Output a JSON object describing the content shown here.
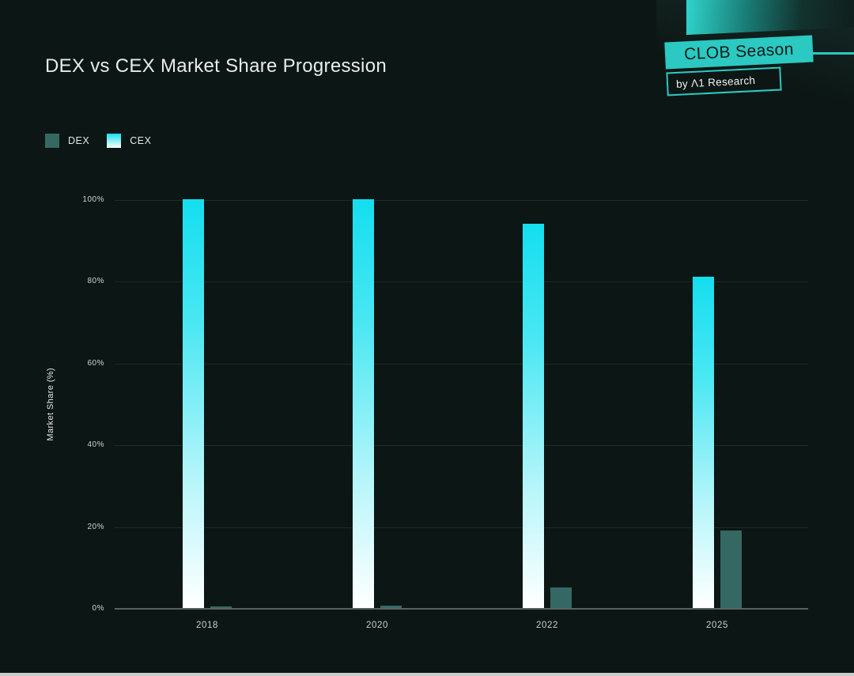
{
  "page": {
    "background_color": "#0C1614",
    "accent_color": "#2BC9C1"
  },
  "header": {
    "title": "DEX vs CEX Market Share Progression"
  },
  "badge": {
    "primary": "CLOB Season",
    "secondary": "by Λ1 Research"
  },
  "legend": {
    "items": [
      {
        "label": "DEX",
        "swatch": "solid",
        "color": "#366863"
      },
      {
        "label": "CEX",
        "swatch": "gradient",
        "color_top": "#14DEEF",
        "color_mid": "#7FEEF6",
        "color_bottom": "#FFFFFF"
      }
    ]
  },
  "chart_data": {
    "type": "bar",
    "categories": [
      "2018",
      "2020",
      "2022",
      "2025"
    ],
    "series": [
      {
        "name": "CEX",
        "values": [
          100,
          100,
          94,
          81
        ]
      },
      {
        "name": "DEX",
        "values": [
          0.3,
          0.5,
          5,
          19
        ]
      }
    ],
    "title": "DEX vs CEX Market Share Progression",
    "xlabel": "",
    "ylabel": "Market Share (%)",
    "ylim": [
      0,
      100
    ],
    "yticks": [
      0,
      20,
      40,
      60,
      80,
      100
    ],
    "ytick_labels": [
      "0%",
      "20%",
      "40%",
      "60%",
      "80%",
      "100%"
    ],
    "grid": true,
    "legend_position": "top-left",
    "bar_order": [
      "CEX",
      "DEX"
    ],
    "colors": {
      "DEX": "#366863",
      "CEX_gradient_top": "#14DEEF",
      "CEX_gradient_bottom": "#FFFFFF",
      "gridline": "#1E2B28",
      "axis_line": "#57635F"
    }
  }
}
